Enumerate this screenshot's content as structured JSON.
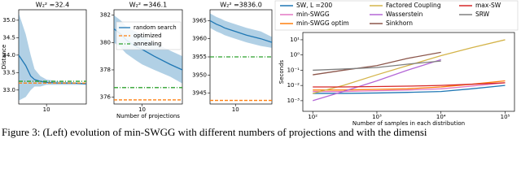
{
  "chart_data": [
    {
      "type": "line",
      "title": "W₂² =32.4",
      "ylabel": "Distance",
      "xscale": "log",
      "x": [
        2,
        3,
        4,
        5,
        7,
        10,
        20,
        50,
        100
      ],
      "xlim": [
        2,
        100
      ],
      "xticks": [
        10
      ],
      "ylim": [
        32.6,
        35.3
      ],
      "yticks": [
        {
          "value": 33.0,
          "label": "33.0"
        },
        {
          "value": 33.5,
          "label": "33.5"
        },
        {
          "value": 34.0,
          "label": "34.0"
        },
        {
          "value": 34.5,
          "label": "34.5"
        },
        {
          "value": 35.0,
          "label": "35.0"
        }
      ],
      "series": [
        {
          "color": "#1f77b4",
          "values": [
            34.0,
            33.7,
            33.4,
            33.3,
            33.25,
            33.22,
            33.2,
            33.2,
            33.18
          ],
          "upper": [
            35.2,
            34.6,
            34.0,
            33.6,
            33.4,
            33.3,
            33.25,
            33.22,
            33.2
          ],
          "lower": [
            32.7,
            32.8,
            33.0,
            33.1,
            33.1,
            33.15,
            33.15,
            33.15,
            33.15
          ]
        },
        {
          "color": "#ff7f0e",
          "dash": "dashed",
          "values": [
            33.2,
            33.2,
            33.2,
            33.2,
            33.2,
            33.2,
            33.2,
            33.2,
            33.2
          ]
        },
        {
          "color": "#2ca02c",
          "dash": "dashdot",
          "values": [
            33.25,
            33.25,
            33.25,
            33.25,
            33.25,
            33.25,
            33.25,
            33.25,
            33.25
          ]
        }
      ]
    },
    {
      "type": "line",
      "title": "W₂² =346.1",
      "xlabel": "Number of projections",
      "xscale": "log",
      "legend": "upper right",
      "x": [
        2,
        3,
        4,
        5,
        7,
        10,
        20,
        50,
        100
      ],
      "xlim": [
        2,
        100
      ],
      "xticks": [
        10
      ],
      "ylim": [
        375.5,
        382.4
      ],
      "yticks": [
        376,
        378,
        380,
        382
      ],
      "series": [
        {
          "name": "random search",
          "color": "#1f77b4",
          "values": [
            381.0,
            380.6,
            380.2,
            380.0,
            379.7,
            379.5,
            379.0,
            378.4,
            378.0
          ],
          "upper": [
            382.0,
            381.6,
            381.2,
            381.0,
            380.8,
            380.5,
            380.0,
            379.4,
            379.0
          ],
          "lower": [
            380.0,
            379.6,
            379.2,
            379.0,
            378.7,
            378.4,
            378.0,
            377.5,
            377.0
          ]
        },
        {
          "name": "optimized",
          "color": "#ff7f0e",
          "dash": "dashed",
          "values": [
            375.8,
            375.8,
            375.8,
            375.8,
            375.8,
            375.8,
            375.8,
            375.8,
            375.8
          ]
        },
        {
          "name": "annealing",
          "color": "#2ca02c",
          "dash": "dashdot",
          "values": [
            376.7,
            376.7,
            376.7,
            376.7,
            376.7,
            376.7,
            376.7,
            376.7,
            376.7
          ]
        }
      ]
    },
    {
      "type": "line",
      "title": "W₂² =3836.0",
      "xscale": "log",
      "x": [
        2,
        3,
        4,
        5,
        7,
        10,
        20,
        50,
        100
      ],
      "xlim": [
        2,
        100
      ],
      "xticks": [
        10
      ],
      "ylim": [
        3942,
        3968
      ],
      "yticks": [
        3945,
        3950,
        3955,
        3960,
        3965
      ],
      "series": [
        {
          "color": "#1f77b4",
          "values": [
            3965,
            3964,
            3963.5,
            3963,
            3962.5,
            3962,
            3961,
            3960,
            3959
          ],
          "upper": [
            3967,
            3966,
            3965.5,
            3965,
            3964.5,
            3964,
            3963,
            3962,
            3960.5
          ],
          "lower": [
            3963,
            3962,
            3961.5,
            3961,
            3960.5,
            3960,
            3959,
            3958,
            3957.5
          ]
        },
        {
          "color": "#ff7f0e",
          "dash": "dashed",
          "values": [
            3943,
            3943,
            3943,
            3943,
            3943,
            3943,
            3943,
            3943,
            3943
          ]
        },
        {
          "color": "#2ca02c",
          "dash": "dashdot",
          "values": [
            3955,
            3955,
            3955,
            3955,
            3955,
            3955,
            3955,
            3955,
            3955
          ]
        }
      ]
    },
    {
      "type": "line",
      "ylabel": "Seconds",
      "xlabel": "Number of samples in each distribution",
      "xscale": "log",
      "yscale": "log",
      "legend": "above",
      "x": [
        100,
        300,
        1000,
        3000,
        10000,
        30000,
        100000
      ],
      "xlim": [
        70,
        140000
      ],
      "xticks": [
        {
          "value": 100,
          "label": "10²"
        },
        {
          "value": 1000,
          "label": "10³"
        },
        {
          "value": 10000,
          "label": "10⁴"
        },
        {
          "value": 100000,
          "label": "10⁵"
        }
      ],
      "ylim": [
        0.0002,
        30
      ],
      "yticks": [
        {
          "value": 0.001,
          "label": "10⁻³"
        },
        {
          "value": 0.01,
          "label": "10⁻²"
        },
        {
          "value": 0.1,
          "label": "10⁻¹"
        },
        {
          "value": 1,
          "label": "10⁰"
        },
        {
          "value": 10,
          "label": "10¹"
        }
      ],
      "series": [
        {
          "name": "SW, L =200",
          "color": "#1f77b4",
          "values": [
            0.003,
            0.003,
            0.0032,
            0.0035,
            0.004,
            0.006,
            0.01
          ]
        },
        {
          "name": "min-SWGG",
          "color": "#e377c2",
          "values": [
            0.004,
            0.004,
            0.0045,
            0.005,
            0.006,
            0.009,
            0.015
          ]
        },
        {
          "name": "min-SWGG optim",
          "color": "#ff7f0e",
          "values": [
            0.005,
            0.005,
            0.0055,
            0.006,
            0.008,
            0.012,
            0.02
          ]
        },
        {
          "name": "Factored Coupling",
          "color": "#d4b44a",
          "values": [
            0.003,
            0.01,
            0.05,
            0.2,
            0.9,
            3,
            10
          ]
        },
        {
          "name": "Wasserstein",
          "color": "#b467d6",
          "values": [
            0.001,
            0.004,
            0.02,
            0.1,
            0.5,
            null,
            null
          ]
        },
        {
          "name": "Sinkhorn",
          "color": "#8c564b",
          "values": [
            0.05,
            0.1,
            0.2,
            0.6,
            1.5,
            null,
            null
          ]
        },
        {
          "name": "max-SW",
          "color": "#d62728",
          "values": [
            0.008,
            0.008,
            0.0085,
            0.009,
            0.01,
            0.012,
            0.015
          ]
        },
        {
          "name": "SRW",
          "color": "#7f7f7f",
          "values": [
            0.1,
            0.12,
            0.15,
            0.25,
            0.4,
            null,
            null
          ]
        }
      ]
    }
  ],
  "caption": "Figure 3: (Left) evolution of min-SWGG with different numbers of projections and with the dimensi"
}
